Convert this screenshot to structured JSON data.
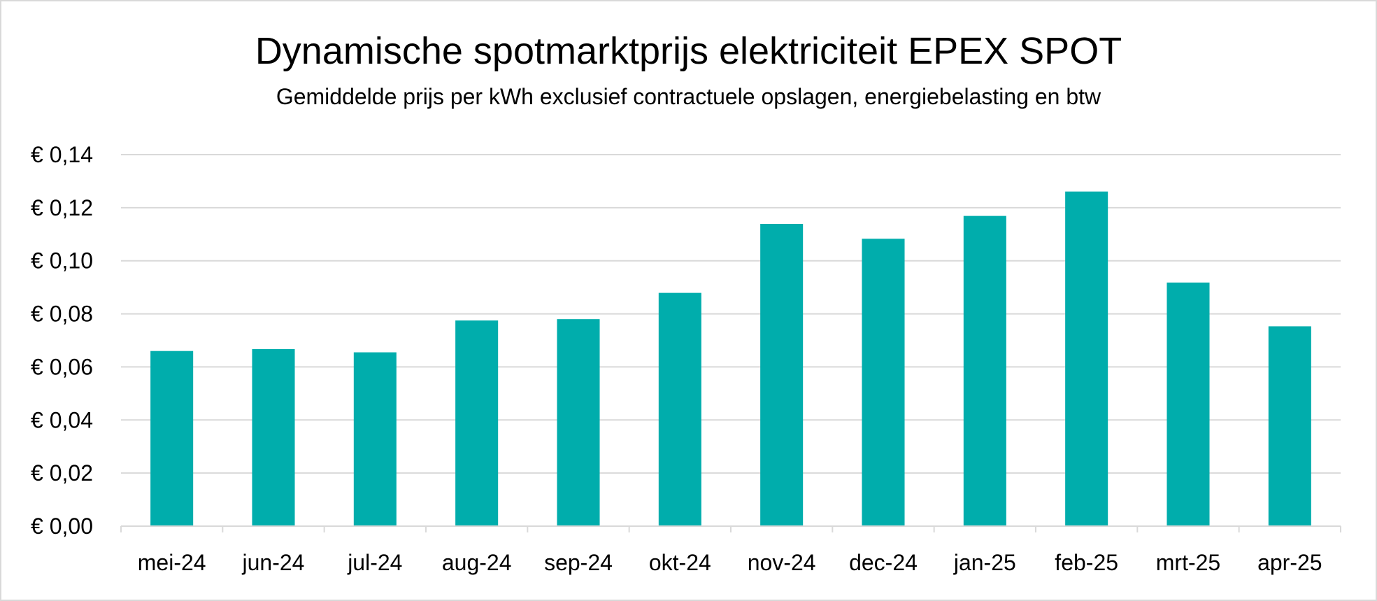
{
  "chart_data": {
    "type": "bar",
    "title": "Dynamische spotmarktprijs elektriciteit EPEX SPOT",
    "subtitle": "Gemiddelde prijs per kWh exclusief contractuele opslagen, energiebelasting en btw",
    "xlabel": "",
    "ylabel": "",
    "ylim": [
      0,
      0.14
    ],
    "yticks": [
      0.0,
      0.02,
      0.04,
      0.06,
      0.08,
      0.1,
      0.12,
      0.14
    ],
    "ytick_labels": [
      "€ 0,00",
      "€ 0,02",
      "€ 0,04",
      "€ 0,06",
      "€ 0,08",
      "€ 0,10",
      "€ 0,12",
      "€ 0,14"
    ],
    "categories": [
      "mei-24",
      "jun-24",
      "jul-24",
      "aug-24",
      "sep-24",
      "okt-24",
      "nov-24",
      "dec-24",
      "jan-25",
      "feb-25",
      "mrt-25",
      "apr-25"
    ],
    "values": [
      0.066,
      0.0667,
      0.0655,
      0.0775,
      0.078,
      0.0879,
      0.1139,
      0.1083,
      0.1169,
      0.1261,
      0.0918,
      0.0753
    ],
    "grid": true,
    "legend": "none",
    "colors": {
      "bar": "#00ADAC",
      "grid": "#d9d9d9",
      "axis": "#d9d9d9"
    }
  }
}
